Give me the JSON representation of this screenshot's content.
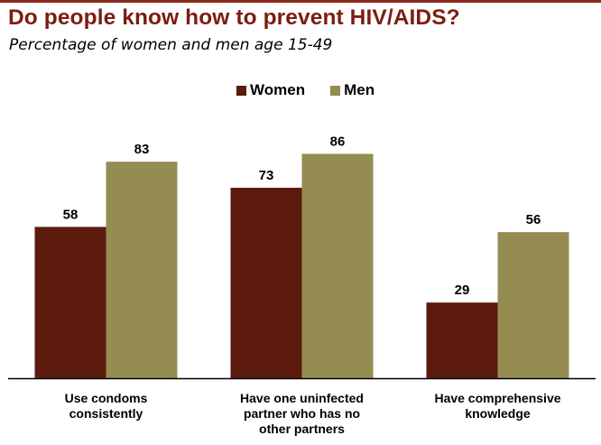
{
  "title": "Do people know how to prevent HIV/AIDS?",
  "subtitle": "Percentage of women and men age 15-49",
  "colors": {
    "women": "#5c1a0f",
    "men": "#958c52",
    "accent": "#7b1d10"
  },
  "chart_data": {
    "type": "bar",
    "title": "Do people know how to prevent HIV/AIDS?",
    "subtitle": "Percentage of women and men age 15-49",
    "categories": [
      [
        "Use condoms",
        "consistently"
      ],
      [
        "Have one uninfected",
        "partner who has no",
        "other partners"
      ],
      [
        "Have comprehensive",
        "knowledge"
      ]
    ],
    "series": [
      {
        "name": "Women",
        "values": [
          58,
          73,
          29
        ],
        "color": "#5c1a0f"
      },
      {
        "name": "Men",
        "values": [
          83,
          86,
          56
        ],
        "color": "#958c52"
      }
    ],
    "xlabel": "",
    "ylabel": "",
    "ylim": [
      0,
      100
    ],
    "grid": false,
    "legend_position": "top-center"
  }
}
